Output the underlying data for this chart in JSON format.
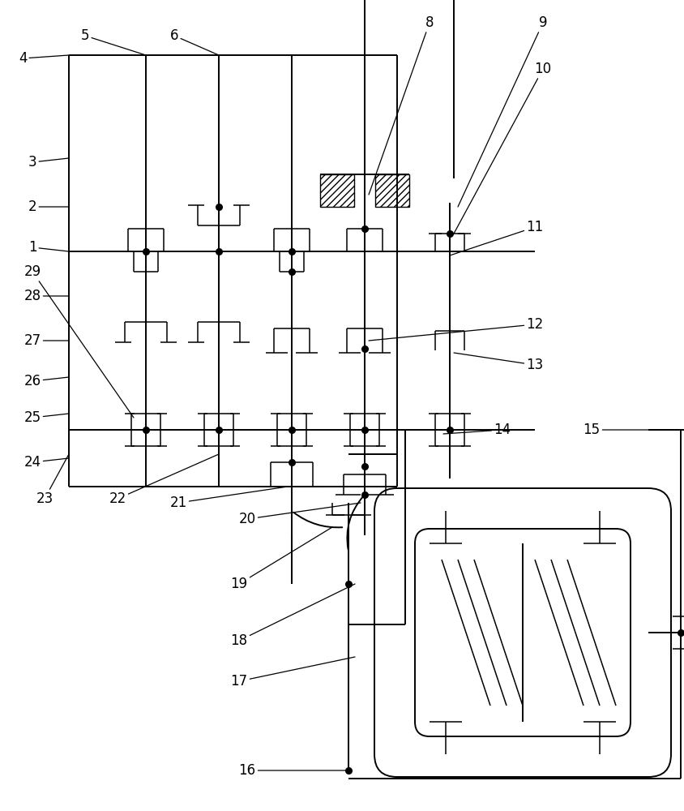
{
  "fig_width": 8.44,
  "fig_height": 10.0,
  "lw": 1.4,
  "lw_thin": 1.1,
  "dot_size": 5.5,
  "label_fontsize": 12
}
